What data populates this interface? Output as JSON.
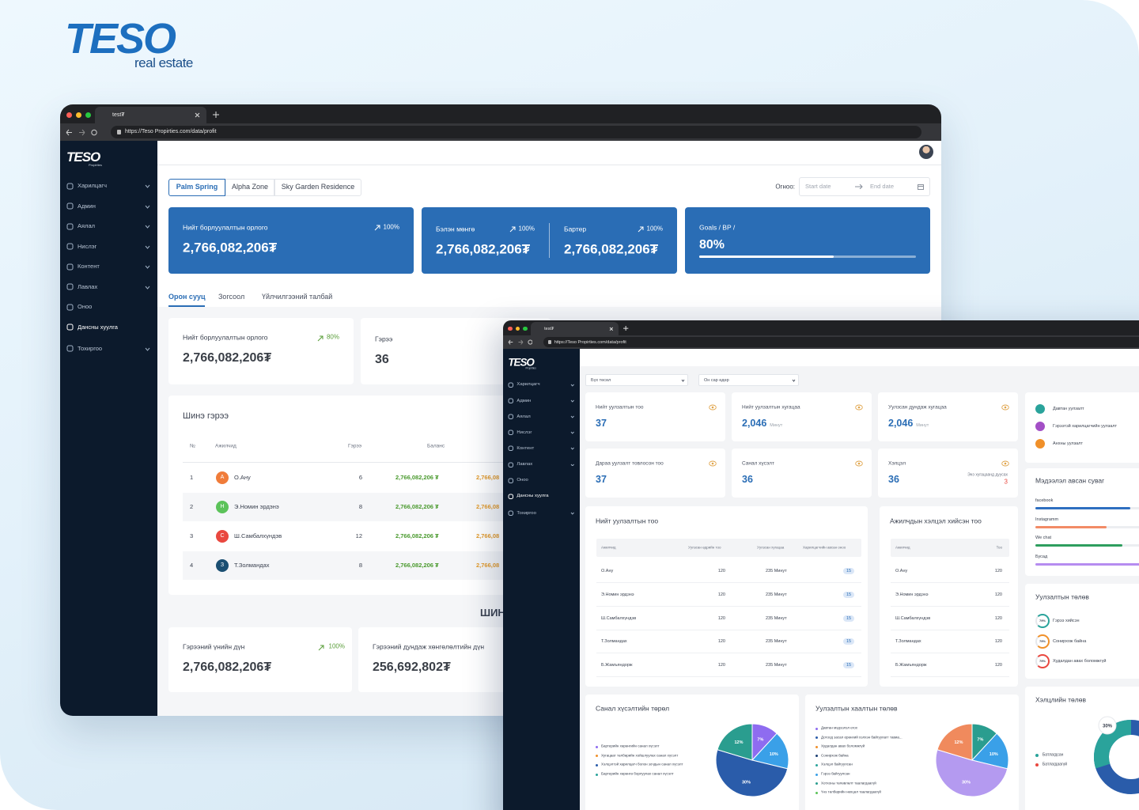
{
  "logo": {
    "brand": "TESO",
    "tagline": "real estate"
  },
  "window1": {
    "tab": "test₮",
    "url": "https://Teso Propirties.com/data/profit",
    "sidebar_logo": "TESO",
    "sidebar_logo_sub": "Propirties",
    "menu": [
      "Харилцагч",
      "Админ",
      "Аялал",
      "Нислэг",
      "Контент",
      "Лавлах",
      "Оноо",
      "Дансны хуулга",
      "Тохиргоо"
    ],
    "projects": [
      "Palm Spring",
      "Alpha Zone",
      "Sky Garden Residence"
    ],
    "date_label": "Огноо:",
    "start_date": "Start date",
    "end_date": "End date",
    "summary": [
      {
        "title": "Нийт борлуулалтын орлого",
        "change": "100%",
        "value": "2,766,082,206₮"
      },
      {
        "title": "Бэлэн мөнгө",
        "change": "100%",
        "value": "2,766,082,206₮"
      },
      {
        "title": "Бартер",
        "change": "100%",
        "value": "2,766,082,206₮"
      },
      {
        "title": "Goals / BP /",
        "value": "80%"
      }
    ],
    "subtabs": [
      "Орон сууц",
      "Зогсоол",
      "Үйлчилгээний талбай"
    ],
    "stats": [
      {
        "title": "Нийт борлуулалтын орлого",
        "change": "80%",
        "value": "2,766,082,206₮"
      },
      {
        "title": "Гэрээ",
        "value": "36"
      }
    ],
    "table": {
      "title": "Шинэ гэрээ",
      "columns": [
        "№",
        "Ажилчид",
        "Гэрээ",
        "Баланс"
      ],
      "rows": [
        {
          "no": "1",
          "avatar": "А",
          "name": "О.Ану",
          "contracts": "6",
          "balance": "2,766,082,206 ₮",
          "extra": "2,766,08"
        },
        {
          "no": "2",
          "avatar": "Н",
          "name": "Э.Номин эрдэнэ",
          "contracts": "8",
          "balance": "2,766,082,206 ₮",
          "extra": "2,766,08"
        },
        {
          "no": "3",
          "avatar": "С",
          "name": "Ш.Самбалхүндэв",
          "contracts": "12",
          "balance": "2,766,082,206 ₮",
          "extra": "2,766,08"
        },
        {
          "no": "4",
          "avatar": "З",
          "name": "Т.Золмандах",
          "contracts": "8",
          "balance": "2,766,082,206 ₮",
          "extra": "2,766,08"
        }
      ]
    },
    "section_heading": "ШИН",
    "bottom": [
      {
        "title": "Гэрээний үнийн дүн",
        "change": "100%",
        "value": "2,766,082,206₮"
      },
      {
        "title": "Гэрээний дундаж хөнгөлөлтийн дүн",
        "value": "256,692,802₮"
      }
    ]
  },
  "window2": {
    "tab": "test₮",
    "url": "https://Teso Propirties.com/data/profit",
    "sidebar_logo": "TESO",
    "sidebar_logo_sub": "Propirties",
    "menu": [
      "Харилцагч",
      "Админ",
      "Аялал",
      "Нислэг",
      "Контент",
      "Лавлах",
      "Оноо",
      "Дансны хуулга",
      "Тохиргоо"
    ],
    "filters": [
      "Бүх төсөл",
      "Он сар өдөр"
    ],
    "stats": [
      {
        "title": "Нийт уулзалтын тоо",
        "value": "37"
      },
      {
        "title": "Нийт уулзалтын хугацаа",
        "value": "2,046",
        "unit": "Минут"
      },
      {
        "title": "Уулзсан дундаж хугацаа",
        "value": "2,046",
        "unit": "Минут"
      },
      {
        "title": "Дараа уулзалт товлосон тоо",
        "value": "37"
      },
      {
        "title": "Санал хүсэлт",
        "value": "36"
      },
      {
        "title": "Хэлцэл",
        "value": "36",
        "note": "Энэ хугацаанд дуусах",
        "note_value": "3"
      }
    ],
    "meeting_types": [
      {
        "label": "Давтан уулзалт",
        "color": "#2aa39b"
      },
      {
        "label": "Гэрээтэй харилцагчийн уулзалт",
        "color": "#a34fc6"
      },
      {
        "label": "Анхны уулзалт",
        "color": "#f0902a"
      }
    ],
    "channels": {
      "title": "Мэдээлэл авсан суваг",
      "items": [
        {
          "label": "facebook",
          "color": "#2f6fc0"
        },
        {
          "label": "Instagramm",
          "color": "#f28b66"
        },
        {
          "label": "We chat",
          "color": "#2e9e5e"
        },
        {
          "label": "Бусад",
          "color": "#b68cf0"
        }
      ]
    },
    "meeting_status": {
      "title": "Уулзалтын төлөв",
      "items": [
        {
          "percent": "79%",
          "label": "Гэрээ хийсэн",
          "color": "#2aa39b"
        },
        {
          "percent": "79%",
          "label": "Сонирхож байна",
          "color": "#f0902a"
        },
        {
          "percent": "79%",
          "label": "Худалдан авах боломжгүй",
          "color": "#e9483f"
        }
      ]
    },
    "deal_status": {
      "title": "Хэлцлийн төлөв",
      "legend": [
        {
          "label": "Батлагдсан",
          "color": "#2aa39b"
        },
        {
          "label": "Батлагдаагүй",
          "color": "#e9483f"
        }
      ],
      "share": {
        "value": 30,
        "label": "30%"
      }
    },
    "meetings_table": {
      "title": "Нийт уулзалтын тоо",
      "columns": [
        "Ажилчид",
        "Уулзсан өдрийн тоо",
        "Уулзсан хугацаа",
        "Харилцагчийн авсан оноо"
      ],
      "rows": [
        [
          "О.Ану",
          "120",
          "235 Минут",
          "15"
        ],
        [
          "Э.Номин эрдэнэ",
          "120",
          "235 Минут",
          "15"
        ],
        [
          "Ш.Самбалхүндэв",
          "120",
          "235 Минут",
          "15"
        ],
        [
          "Т.Золмандах",
          "120",
          "235 Минут",
          "15"
        ],
        [
          "Б.Жамъяндорж",
          "120",
          "235 Минут",
          "15"
        ]
      ]
    },
    "deals_table": {
      "title": "Ажилчдын хэлцэл хийсэн тоо",
      "columns": [
        "Ажилчид",
        "Тоо"
      ],
      "rows": [
        [
          "О.Ану",
          "120"
        ],
        [
          "Э.Номин эрдэнэ",
          "120"
        ],
        [
          "Ш.Самбалхүндэв",
          "120"
        ],
        [
          "Т.Золмандах",
          "120"
        ],
        [
          "Б.Жамъяндорж",
          "120"
        ]
      ]
    },
    "feedback_pie": {
      "title": "Санал хүсэлтийн төрөл",
      "legend": [
        {
          "label": "Бартерийн хөрөнгийн санал хүсэлт",
          "color": "#8e6cf0"
        },
        {
          "label": "Хугацаат төлбөрийн хойшлуулах санал хүсэлт",
          "color": "#f0902a"
        },
        {
          "label": "Хэлцэлтэй харилцагч болон зочдын санал хүсэлт",
          "color": "#2a5caa"
        },
        {
          "label": "Бартерийн хөрөнгө борлуулах санал хүсэлт",
          "color": "#2aa39b"
        }
      ],
      "slices": [
        {
          "value": 7,
          "label": "7%",
          "color": "#8e6cf0"
        },
        {
          "value": 10,
          "label": "10%",
          "color": "#3aa0e8"
        },
        {
          "value": 30,
          "label": "30%",
          "color": "#2a5caa"
        },
        {
          "value": 12,
          "label": "12%",
          "color": "#2a9d8f"
        }
      ]
    },
    "closing_pie": {
      "title": "Уулзалтын хаалтын төлөв",
      "legend": [
        {
          "label": "Давтан мэдээлэл егох",
          "color": "#8e6cf0"
        },
        {
          "label": "Дотоод засал ерөнхий хэлхэн байгуулагт тавиа...",
          "color": "#2a5caa"
        },
        {
          "label": "Худалдан авах боломжгүй",
          "color": "#f0902a"
        },
        {
          "label": "Сонирхож байна",
          "color": "#1b3f73"
        },
        {
          "label": "Хэлцэл байгуулсан",
          "color": "#2aa39b"
        },
        {
          "label": "Гэрээ байгуулсан",
          "color": "#3aa0e8"
        },
        {
          "label": "Хотхоны төлөвлөлт таалагдаагүй",
          "color": "#2a9d8f"
        },
        {
          "label": "Үнэ төлбөрийн нөхцөл таалагдаагүй",
          "color": "#5cc35a"
        }
      ],
      "slices": [
        {
          "value": 7,
          "label": "7%",
          "color": "#2a9d8f"
        },
        {
          "value": 10,
          "label": "10%",
          "color": "#3aa0e8"
        },
        {
          "value": 30,
          "label": "30%",
          "color": "#b49af0"
        },
        {
          "value": 12,
          "label": "12%",
          "color": "#f08a5d"
        }
      ]
    }
  }
}
